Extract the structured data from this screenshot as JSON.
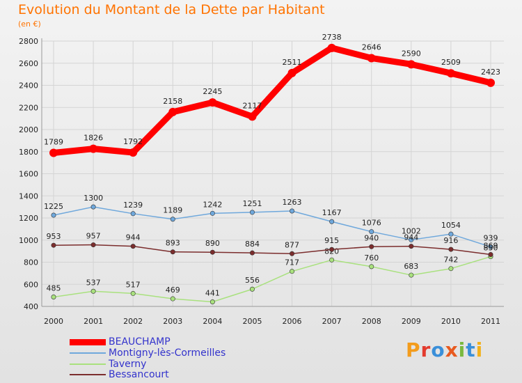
{
  "header": {
    "title": "Evolution du Montant de la Dette par Habitant",
    "subtitle": "(en €)"
  },
  "colors": {
    "title": "#ff7300",
    "legend_text": "#3333cc",
    "grid": "#d4d4d4",
    "axis_text": "#222222"
  },
  "logo": {
    "text": "Proxiti",
    "letters": [
      "P",
      "r",
      "o",
      "x",
      "i",
      "t",
      "i"
    ],
    "letter_colors": [
      "#f39c1c",
      "#e33b2e",
      "#3a8fd9",
      "#e85a1f",
      "#7ab93f",
      "#3a8fd9",
      "#f2b11c"
    ]
  },
  "chart_data": {
    "type": "line",
    "title": "Evolution du Montant de la Dette par Habitant",
    "ylabel": "(en €)",
    "xlabel": "",
    "x": [
      "2000",
      "2001",
      "2002",
      "2003",
      "2004",
      "2005",
      "2006",
      "2007",
      "2008",
      "2009",
      "2010",
      "2011"
    ],
    "ylim": [
      400,
      2800
    ],
    "yticks": [
      "400",
      "600",
      "800",
      "1000",
      "1200",
      "1400",
      "1600",
      "1800",
      "2000",
      "2200",
      "2400",
      "2600",
      "2800"
    ],
    "grid": true,
    "legend_position": "bottom-left",
    "series": [
      {
        "name": "BEAUCHAMP",
        "color": "#ff0000",
        "values": [
          1789,
          1826,
          1792,
          2158,
          2245,
          2117,
          2511,
          2738,
          2646,
          2590,
          2509,
          2423
        ],
        "labels": [
          "1789",
          "1826",
          "1792",
          "2158",
          "2245",
          "2117",
          "2511",
          "2738",
          "2646",
          "2590",
          "2509",
          "2423"
        ]
      },
      {
        "name": "Montigny-lès-Cormeilles",
        "color": "#6fa8dc",
        "values": [
          1225,
          1300,
          1239,
          1189,
          1242,
          1251,
          1263,
          1167,
          1076,
          1002,
          1054,
          939
        ],
        "labels": [
          "1225",
          "1300",
          "1239",
          "1189",
          "1242",
          "1251",
          "1263",
          "1167",
          "1076",
          "1002",
          "1054",
          "939"
        ]
      },
      {
        "name": "Taverny",
        "color": "#a9e17e",
        "values": [
          485,
          537,
          517,
          469,
          441,
          556,
          717,
          820,
          760,
          683,
          742,
          850
        ],
        "labels": [
          "485",
          "537",
          "517",
          "469",
          "441",
          "556",
          "717",
          "820",
          "760",
          "683",
          "742",
          "850"
        ]
      },
      {
        "name": "Bessancourt",
        "color": "#7b2d2d",
        "values": [
          953,
          957,
          944,
          893,
          890,
          884,
          877,
          915,
          940,
          944,
          916,
          869
        ],
        "labels": [
          "953",
          "957",
          "944",
          "893",
          "890",
          "884",
          "877",
          "915",
          "940",
          "944",
          "916",
          "869"
        ]
      }
    ]
  }
}
